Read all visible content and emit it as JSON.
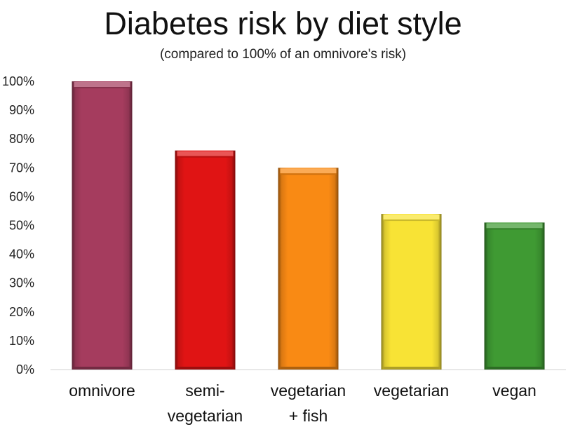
{
  "chart_data": {
    "type": "bar",
    "title": "Diabetes risk by diet style",
    "subtitle": "(compared to 100% of an omnivore's risk)",
    "xlabel": "",
    "ylabel": "",
    "categories": [
      [
        "omnivore"
      ],
      [
        "semi-",
        "vegetarian"
      ],
      [
        "vegetarian",
        "+ fish"
      ],
      [
        "vegetarian"
      ],
      [
        "vegan"
      ]
    ],
    "values": [
      100,
      76,
      70,
      54,
      51
    ],
    "colors": [
      "#a53c5e",
      "#e01414",
      "#f98a14",
      "#f8e335",
      "#3f9a33"
    ],
    "ylim": [
      0,
      100
    ],
    "yticks": [
      0,
      10,
      20,
      30,
      40,
      50,
      60,
      70,
      80,
      90,
      100
    ],
    "ytick_labels": [
      "0%",
      "10%",
      "20%",
      "30%",
      "40%",
      "50%",
      "60%",
      "70%",
      "80%",
      "90%",
      "100%"
    ],
    "grid": false,
    "legend": "none"
  }
}
